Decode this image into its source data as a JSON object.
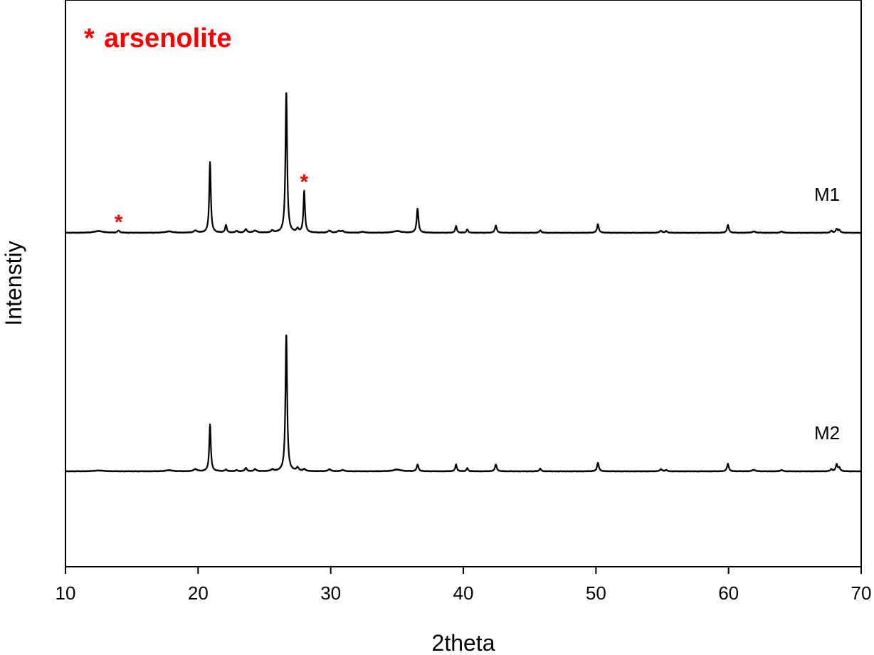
{
  "chart_data": {
    "type": "line",
    "xlabel": "2theta",
    "ylabel": "Intenstiy",
    "xlim": [
      10,
      70
    ],
    "x_ticks": [
      "10",
      "20",
      "30",
      "40",
      "50",
      "60",
      "70"
    ],
    "y_ticks": [],
    "grid": false,
    "legend": {
      "marker": "*",
      "text": "arsenolite",
      "position": "top-left",
      "color": "#ff0000"
    },
    "marker_color": "#ff0000",
    "line_color": "#000000",
    "series": [
      {
        "name": "M1",
        "baseline": 0,
        "peaks": [
          {
            "x": 12.5,
            "h": 0.01,
            "w": 0.4
          },
          {
            "x": 14.0,
            "h": 0.012,
            "w": 0.1
          },
          {
            "x": 17.8,
            "h": 0.008,
            "w": 0.3
          },
          {
            "x": 19.8,
            "h": 0.012,
            "w": 0.15
          },
          {
            "x": 20.9,
            "h": 0.41,
            "w": 0.07
          },
          {
            "x": 22.1,
            "h": 0.045,
            "w": 0.07
          },
          {
            "x": 22.9,
            "h": 0.01,
            "w": 0.1
          },
          {
            "x": 23.6,
            "h": 0.02,
            "w": 0.1
          },
          {
            "x": 24.3,
            "h": 0.012,
            "w": 0.15
          },
          {
            "x": 25.6,
            "h": 0.012,
            "w": 0.1
          },
          {
            "x": 26.65,
            "h": 0.82,
            "w": 0.075
          },
          {
            "x": 27.5,
            "h": 0.02,
            "w": 0.1
          },
          {
            "x": 28.0,
            "h": 0.24,
            "w": 0.07
          },
          {
            "x": 29.9,
            "h": 0.012,
            "w": 0.12
          },
          {
            "x": 30.6,
            "h": 0.01,
            "w": 0.12
          },
          {
            "x": 30.9,
            "h": 0.01,
            "w": 0.12
          },
          {
            "x": 32.4,
            "h": 0.006,
            "w": 0.15
          },
          {
            "x": 35.0,
            "h": 0.01,
            "w": 0.35
          },
          {
            "x": 36.55,
            "h": 0.14,
            "w": 0.08
          },
          {
            "x": 39.45,
            "h": 0.04,
            "w": 0.07
          },
          {
            "x": 40.3,
            "h": 0.02,
            "w": 0.07
          },
          {
            "x": 42.45,
            "h": 0.042,
            "w": 0.08
          },
          {
            "x": 45.8,
            "h": 0.015,
            "w": 0.08
          },
          {
            "x": 50.15,
            "h": 0.05,
            "w": 0.08
          },
          {
            "x": 54.9,
            "h": 0.012,
            "w": 0.1
          },
          {
            "x": 55.3,
            "h": 0.01,
            "w": 0.08
          },
          {
            "x": 59.95,
            "h": 0.046,
            "w": 0.08
          },
          {
            "x": 61.9,
            "h": 0.008,
            "w": 0.15
          },
          {
            "x": 64.0,
            "h": 0.008,
            "w": 0.1
          },
          {
            "x": 67.75,
            "h": 0.012,
            "w": 0.08
          },
          {
            "x": 68.15,
            "h": 0.022,
            "w": 0.08
          },
          {
            "x": 68.35,
            "h": 0.016,
            "w": 0.08
          }
        ],
        "markers": [
          14.0,
          28.0
        ]
      },
      {
        "name": "M2",
        "baseline": 0,
        "peaks": [
          {
            "x": 12.5,
            "h": 0.005,
            "w": 0.4
          },
          {
            "x": 17.8,
            "h": 0.006,
            "w": 0.3
          },
          {
            "x": 19.8,
            "h": 0.012,
            "w": 0.15
          },
          {
            "x": 20.9,
            "h": 0.27,
            "w": 0.07
          },
          {
            "x": 22.1,
            "h": 0.01,
            "w": 0.08
          },
          {
            "x": 22.9,
            "h": 0.006,
            "w": 0.1
          },
          {
            "x": 23.6,
            "h": 0.02,
            "w": 0.08
          },
          {
            "x": 24.3,
            "h": 0.012,
            "w": 0.1
          },
          {
            "x": 25.6,
            "h": 0.01,
            "w": 0.1
          },
          {
            "x": 26.65,
            "h": 0.8,
            "w": 0.075
          },
          {
            "x": 27.5,
            "h": 0.02,
            "w": 0.1
          },
          {
            "x": 28.0,
            "h": 0.012,
            "w": 0.1
          },
          {
            "x": 29.9,
            "h": 0.012,
            "w": 0.12
          },
          {
            "x": 30.9,
            "h": 0.008,
            "w": 0.12
          },
          {
            "x": 35.0,
            "h": 0.01,
            "w": 0.35
          },
          {
            "x": 36.55,
            "h": 0.04,
            "w": 0.08
          },
          {
            "x": 39.45,
            "h": 0.04,
            "w": 0.07
          },
          {
            "x": 40.3,
            "h": 0.018,
            "w": 0.07
          },
          {
            "x": 42.45,
            "h": 0.04,
            "w": 0.08
          },
          {
            "x": 45.8,
            "h": 0.015,
            "w": 0.08
          },
          {
            "x": 50.15,
            "h": 0.05,
            "w": 0.08
          },
          {
            "x": 54.9,
            "h": 0.012,
            "w": 0.1
          },
          {
            "x": 55.3,
            "h": 0.008,
            "w": 0.08
          },
          {
            "x": 59.95,
            "h": 0.044,
            "w": 0.08
          },
          {
            "x": 61.9,
            "h": 0.008,
            "w": 0.15
          },
          {
            "x": 64.0,
            "h": 0.008,
            "w": 0.1
          },
          {
            "x": 67.75,
            "h": 0.012,
            "w": 0.08
          },
          {
            "x": 68.15,
            "h": 0.04,
            "w": 0.08
          },
          {
            "x": 68.35,
            "h": 0.02,
            "w": 0.08
          }
        ],
        "markers": []
      }
    ]
  }
}
